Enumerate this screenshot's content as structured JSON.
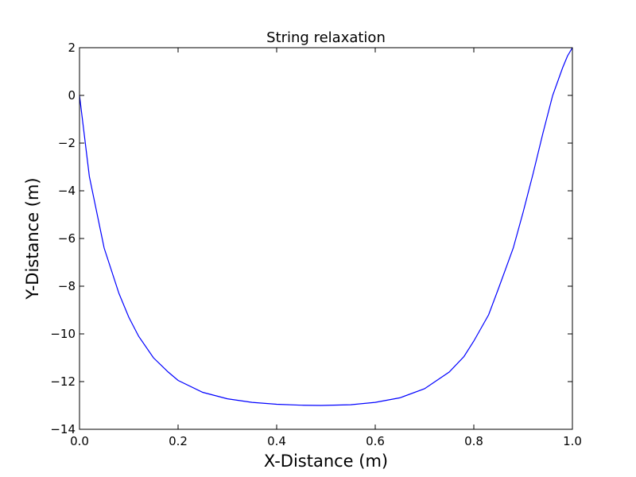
{
  "chart_data": {
    "type": "line",
    "title": "String relaxation",
    "xlabel": "X-Distance (m)",
    "ylabel": "Y-Distance (m)",
    "xlim": [
      0.0,
      1.0
    ],
    "ylim": [
      -14,
      2
    ],
    "xticks": [
      0.0,
      0.2,
      0.4,
      0.6,
      0.8,
      1.0
    ],
    "xtick_labels": [
      "0.0",
      "0.2",
      "0.4",
      "0.6",
      "0.8",
      "1.0"
    ],
    "yticks": [
      2,
      0,
      -2,
      -4,
      -6,
      -8,
      -10,
      -12,
      -14
    ],
    "ytick_labels": [
      "2",
      "0",
      "−2",
      "−4",
      "−6",
      "−8",
      "−10",
      "−12",
      "−14"
    ],
    "grid": false,
    "legend": "none",
    "series": [
      {
        "color": "#0000ff",
        "x": [
          0.0,
          0.02,
          0.05,
          0.08,
          0.1,
          0.12,
          0.15,
          0.18,
          0.2,
          0.25,
          0.3,
          0.35,
          0.4,
          0.45,
          0.49,
          0.55,
          0.6,
          0.65,
          0.7,
          0.75,
          0.78,
          0.8,
          0.83,
          0.85,
          0.88,
          0.9,
          0.92,
          0.94,
          0.96,
          0.98,
          0.99,
          1.0
        ],
        "y": [
          0.0,
          -3.4,
          -6.4,
          -8.3,
          -9.3,
          -10.1,
          -11.0,
          -11.6,
          -11.95,
          -12.45,
          -12.72,
          -12.87,
          -12.95,
          -12.99,
          -13.0,
          -12.97,
          -12.87,
          -12.68,
          -12.3,
          -11.6,
          -10.95,
          -10.3,
          -9.2,
          -8.1,
          -6.4,
          -4.9,
          -3.3,
          -1.6,
          0.0,
          1.15,
          1.65,
          2.0
        ]
      }
    ]
  }
}
